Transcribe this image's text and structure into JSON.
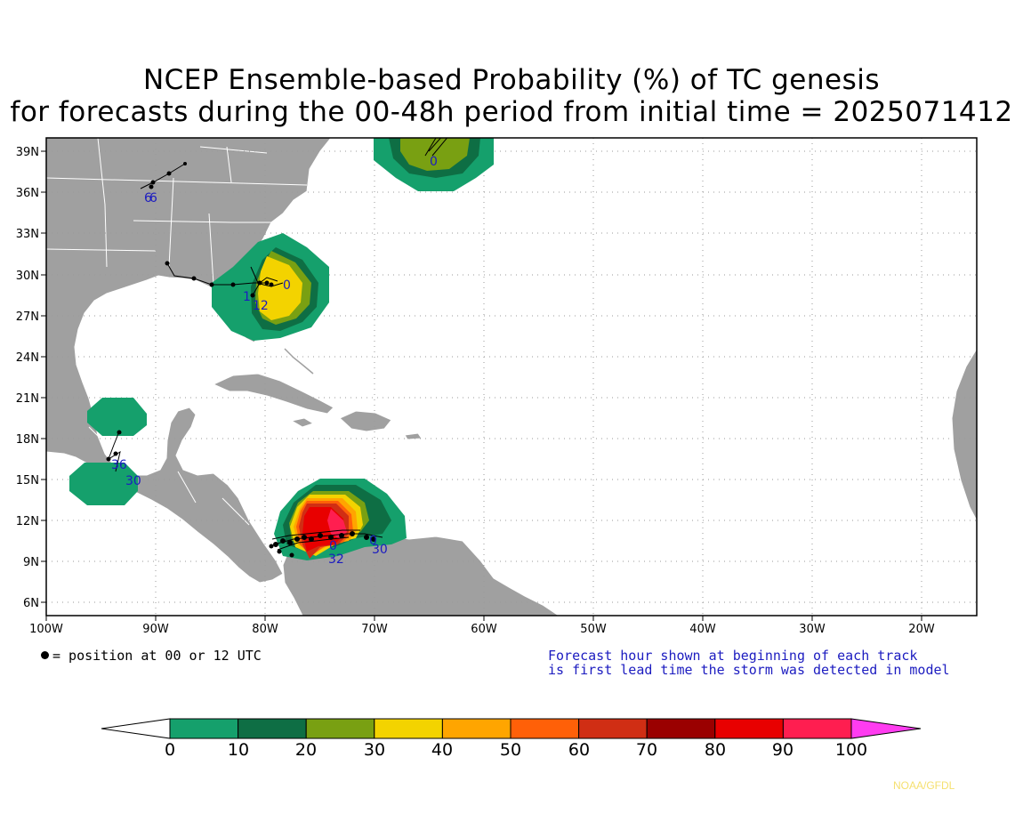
{
  "title": {
    "line1": "NCEP Ensemble-based Probability (%) of TC genesis",
    "line2": "for forecasts during the 00-48h period from initial time = 2025071412"
  },
  "map": {
    "lat_labels": [
      "39N",
      "36N",
      "33N",
      "30N",
      "27N",
      "24N",
      "21N",
      "18N",
      "15N",
      "12N",
      "9N",
      "6N"
    ],
    "lon_labels": [
      "100W",
      "90W",
      "80W",
      "70W",
      "60W",
      "50W",
      "40W",
      "30W",
      "20W"
    ],
    "land_color": "#a0a0a0",
    "ocean_color": "#ffffff",
    "track_labels": [
      "6",
      "6",
      "1",
      "12",
      "0",
      "0",
      "0",
      "36",
      "30",
      "32",
      "30",
      "0"
    ]
  },
  "legend": {
    "dot_text": "= position at 00 or 12 UTC",
    "note_line1": "Forecast hour shown at beginning of each track",
    "note_line2": "is first lead time the storm was detected in model"
  },
  "colorbar": {
    "labels": [
      "0",
      "10",
      "20",
      "30",
      "40",
      "50",
      "60",
      "70",
      "80",
      "90",
      "100"
    ],
    "colors": [
      "#15a06c",
      "#0e6e44",
      "#79a012",
      "#f3d300",
      "#ffa500",
      "#ff6008",
      "#d02e14",
      "#9a0000",
      "#e80000",
      "#ff1e50",
      "#ff3cf0"
    ]
  },
  "credit": "NOAA/GFDL"
}
